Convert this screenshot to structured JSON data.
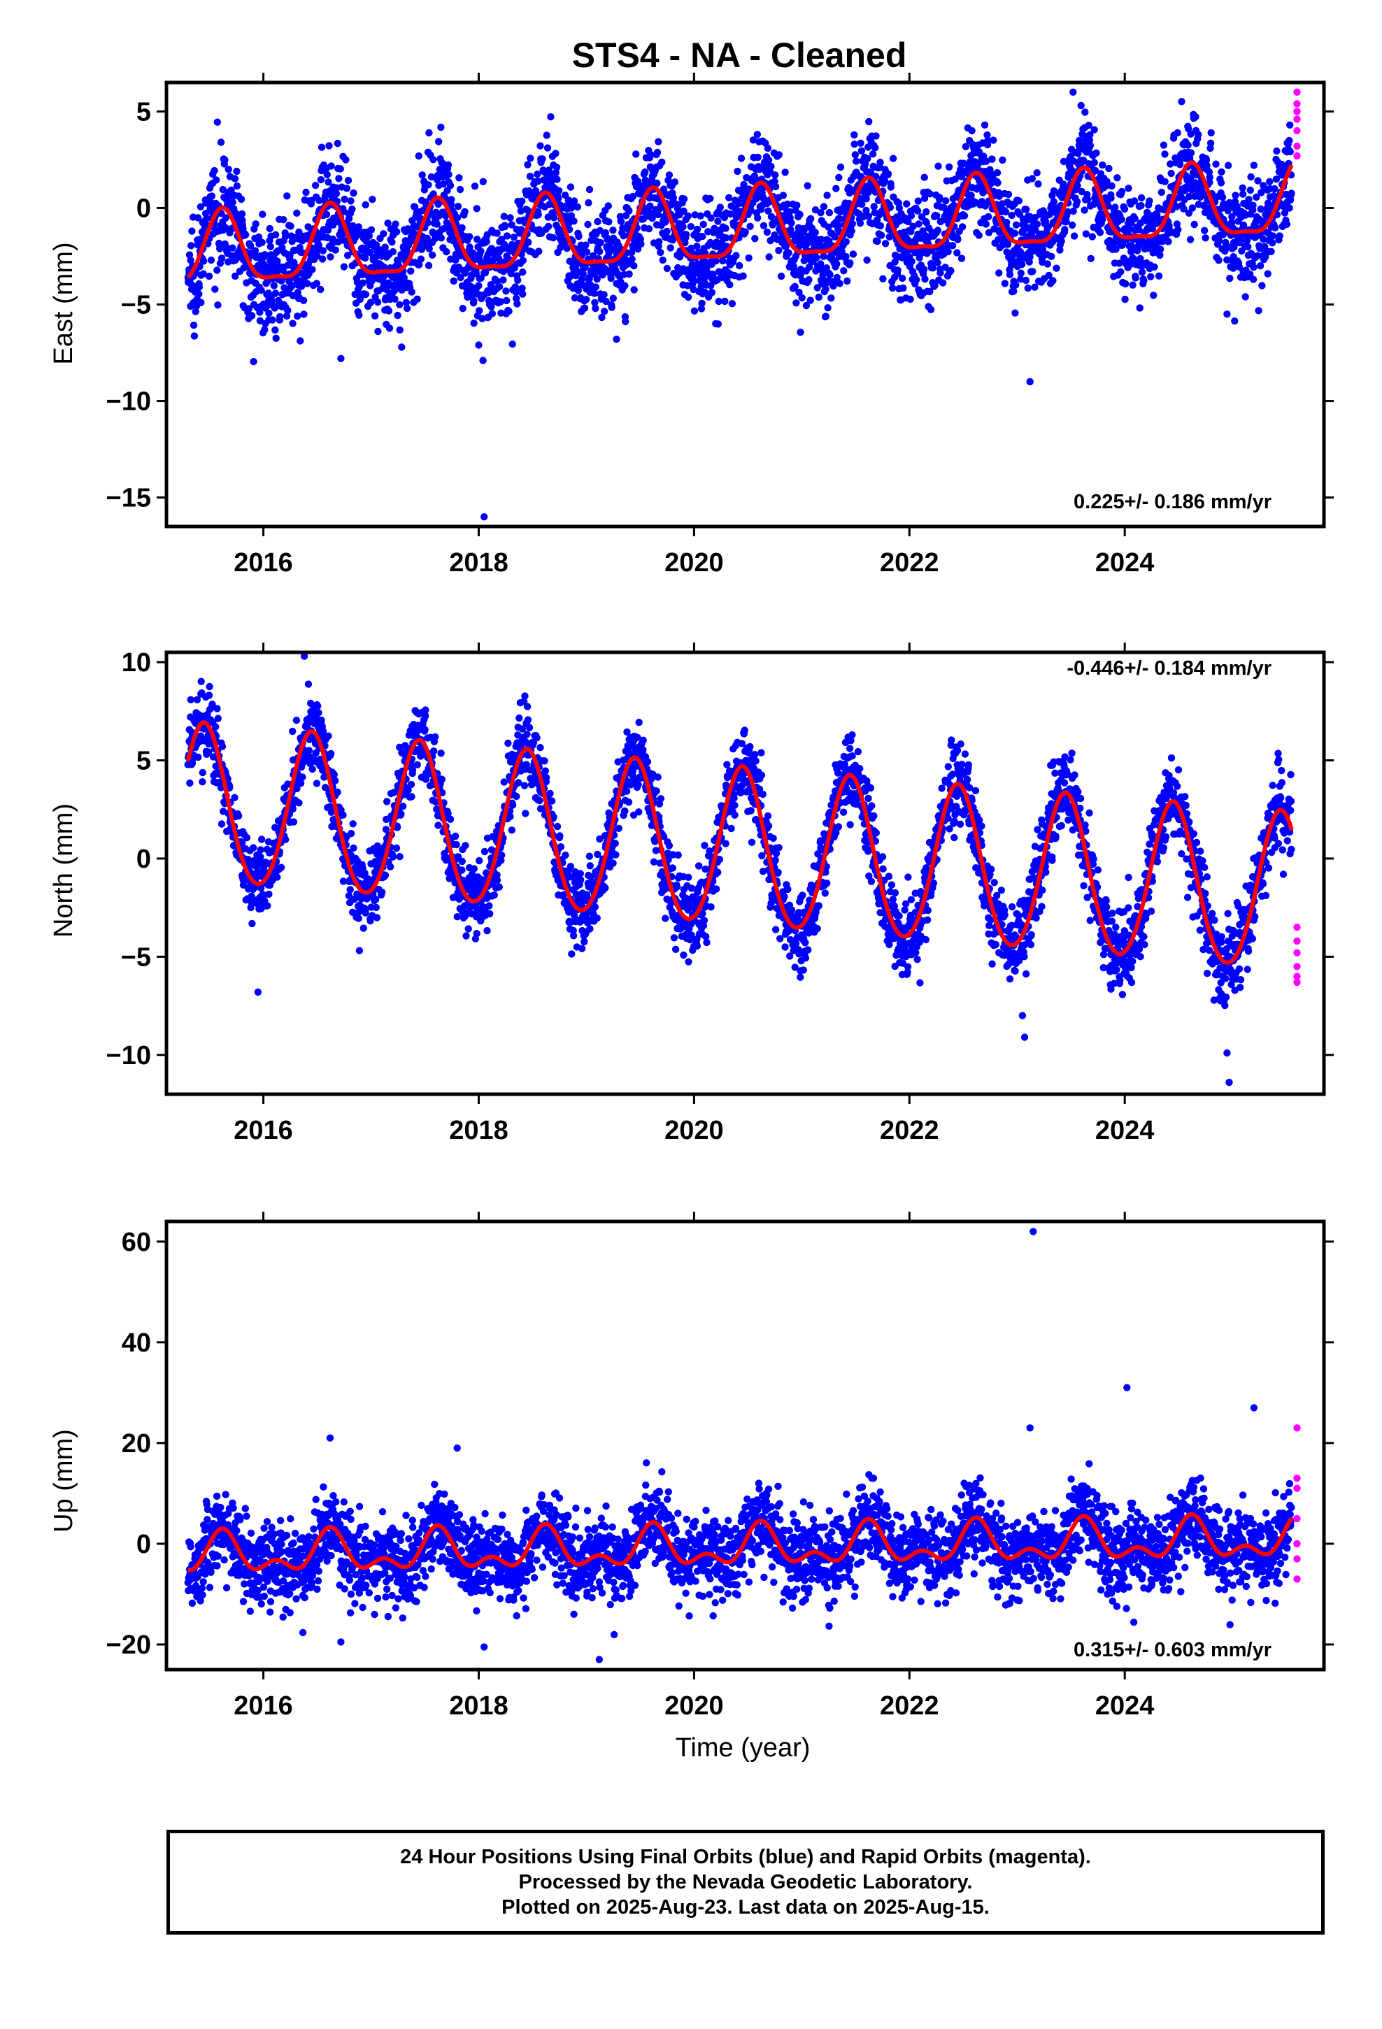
{
  "title": "STS4  - NA - Cleaned",
  "colors": {
    "final": "#0000ff",
    "rapid": "#ff00ff",
    "model": "#ff0000"
  },
  "xlabel": "Time (year)",
  "xticks": [
    "2016",
    "2018",
    "2020",
    "2022",
    "2024"
  ],
  "footnote": {
    "line1": "24 Hour Positions Using Final Orbits (blue) and Rapid Orbits (magenta).",
    "line2": "Processed by the Nevada Geodetic Laboratory.",
    "line3": "Plotted on 2025-Aug-23. Last data on 2025-Aug-15."
  },
  "chart_data": [
    {
      "type": "scatter",
      "component": "east",
      "ylabel": "East (mm)",
      "ylim": [
        -16.5,
        6.5
      ],
      "xlim": [
        2015.1,
        2025.85
      ],
      "yticks": [
        5,
        0,
        -5,
        -10,
        -15
      ],
      "yticklabels": [
        "5",
        "0",
        "−5",
        "−10",
        "−15"
      ],
      "rate": "0.225+/- 0.186 mm/yr",
      "rate_position": "bottom-right",
      "time_span": [
        2015.3,
        2025.55
      ],
      "model": {
        "offset": -1.4,
        "trend": 0.225,
        "annual_amp": 1.85,
        "annual_phase_peak": 0.62,
        "semiannual_amp": 0.55,
        "t0": 2020.0,
        "ramp_end": 0.35
      },
      "scatter_sigma": 1.4,
      "rapid_points": {
        "t": 2025.6,
        "values": [
          2.7,
          3.2,
          4.0,
          4.6,
          5.0,
          5.4,
          6.0
        ]
      },
      "outliers": [
        [
          2015.42,
          -4.9
        ],
        [
          2016.05,
          -5.8
        ],
        [
          2016.72,
          -7.8
        ],
        [
          2018.0,
          -7.1
        ],
        [
          2018.04,
          -7.9
        ],
        [
          2018.05,
          -16.0
        ],
        [
          2019.28,
          -6.8
        ],
        [
          2023.12,
          -9.0
        ],
        [
          2023.52,
          6.0
        ],
        [
          2024.95,
          -5.5
        ]
      ]
    },
    {
      "type": "scatter",
      "component": "north",
      "ylabel": "North (mm)",
      "ylim": [
        -12,
        10.5
      ],
      "xlim": [
        2015.1,
        2025.85
      ],
      "yticks": [
        10,
        5,
        0,
        -5,
        -10
      ],
      "yticklabels": [
        "10",
        "5",
        "0",
        "−5",
        "−10"
      ],
      "rate": "-0.446+/- 0.184 mm/yr",
      "rate_position": "top-right",
      "time_span": [
        2015.3,
        2025.55
      ],
      "model": {
        "offset": 2.7,
        "trend": -0.446,
        "annual_amp": 4.0,
        "annual_phase_peak": 0.45,
        "semiannual_amp": 0.3,
        "t0": 2015.3,
        "ramp_end": 0.0
      },
      "scatter_sigma": 1.0,
      "rapid_points": {
        "t": 2025.6,
        "values": [
          -3.5,
          -4.2,
          -4.8,
          -5.5,
          -6.0,
          -6.3
        ]
      },
      "outliers": [
        [
          2015.95,
          -6.8
        ],
        [
          2016.38,
          10.3
        ],
        [
          2023.05,
          -8.0
        ],
        [
          2023.07,
          -9.1
        ],
        [
          2024.95,
          -9.9
        ],
        [
          2024.97,
          -11.4
        ]
      ]
    },
    {
      "type": "scatter",
      "component": "up",
      "ylabel": "Up (mm)",
      "ylim": [
        -25,
        64
      ],
      "xlim": [
        2015.1,
        2025.85
      ],
      "yticks": [
        60,
        40,
        20,
        0,
        -20
      ],
      "yticklabels": [
        "60",
        "40",
        "20",
        "0",
        "−20"
      ],
      "rate": "0.315+/- 0.603 mm/yr",
      "rate_position": "bottom-right",
      "time_span": [
        2015.3,
        2025.55
      ],
      "model": {
        "offset": -1.0,
        "trend": 0.315,
        "annual_amp": 3.2,
        "annual_phase_peak": 0.62,
        "semiannual_amp": 2.2,
        "t0": 2020.0,
        "ramp_end": 0.0
      },
      "scatter_sigma": 4.0,
      "rapid_points": {
        "t": 2025.6,
        "values": [
          23.0,
          13.0,
          11.0,
          5.0,
          0.0,
          -3.0,
          -7.0
        ]
      },
      "outliers": [
        [
          2023.15,
          62.0
        ],
        [
          2024.02,
          31.0
        ],
        [
          2025.2,
          27.0
        ],
        [
          2019.12,
          -23.0
        ],
        [
          2016.72,
          -19.5
        ],
        [
          2018.05,
          -20.5
        ],
        [
          2023.12,
          23.0
        ],
        [
          2016.62,
          21.0
        ],
        [
          2017.8,
          19.0
        ]
      ]
    }
  ]
}
